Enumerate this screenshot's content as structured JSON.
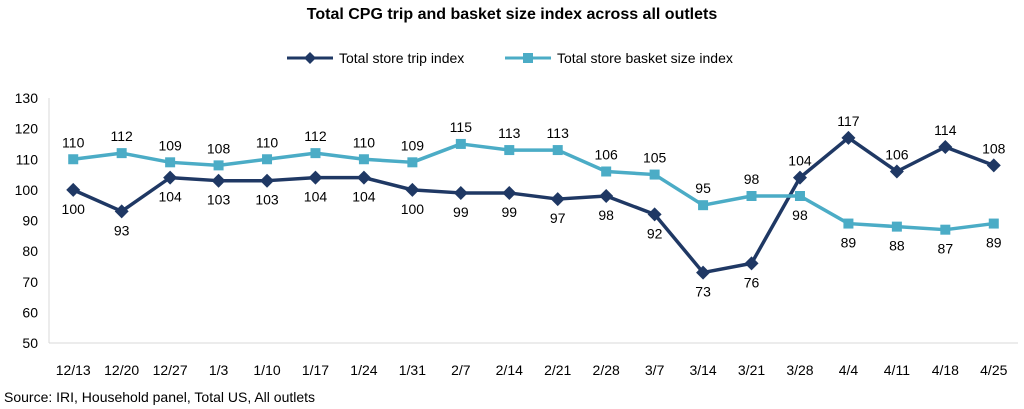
{
  "chart_data": {
    "type": "line",
    "title": "Total CPG trip and basket size index across all outlets",
    "source": "Source: IRI, Household panel, Total US, All outlets",
    "categories": [
      "12/13",
      "12/20",
      "12/27",
      "1/3",
      "1/10",
      "1/17",
      "1/24",
      "1/31",
      "2/7",
      "2/14",
      "2/21",
      "2/28",
      "3/7",
      "3/14",
      "3/21",
      "3/28",
      "4/4",
      "4/11",
      "4/18",
      "4/25"
    ],
    "series": [
      {
        "name": "Total store trip index",
        "color": "#1f3864",
        "marker": "diamond",
        "values": [
          100,
          93,
          104,
          103,
          103,
          104,
          104,
          100,
          99,
          99,
          97,
          98,
          92,
          73,
          76,
          104,
          117,
          106,
          114,
          108
        ]
      },
      {
        "name": "Total store basket size index",
        "color": "#4bacc6",
        "marker": "square",
        "values": [
          110,
          112,
          109,
          108,
          110,
          112,
          110,
          109,
          115,
          113,
          113,
          106,
          105,
          95,
          98,
          98,
          89,
          88,
          87,
          89
        ]
      }
    ],
    "ylim": [
      50,
      130
    ],
    "yticks": [
      50,
      60,
      70,
      80,
      90,
      100,
      110,
      120,
      130
    ],
    "xlabel": "",
    "ylabel": "",
    "grid": false,
    "legend": "top-center",
    "data_labels": true
  }
}
